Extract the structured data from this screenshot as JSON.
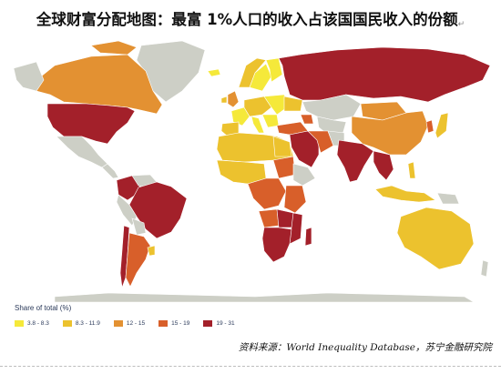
{
  "title": "全球财富分配地图：最富 1%人口的收入占该国国民收入的份额",
  "legend": {
    "title": "Share of total (%)",
    "items": [
      {
        "label": "3.8 - 8.3",
        "color": "#f5e93a"
      },
      {
        "label": "8.3 - 11.9",
        "color": "#ecc22e"
      },
      {
        "label": "12 - 15",
        "color": "#e39132"
      },
      {
        "label": "15 - 19",
        "color": "#d85f2a"
      },
      {
        "label": "19 - 31",
        "color": "#a3202a"
      }
    ]
  },
  "colors": {
    "no_data": "#cdcfc6",
    "ocean": "#ffffff"
  },
  "source": "资料来源：World Inequality Database，苏宁金融研究院"
}
